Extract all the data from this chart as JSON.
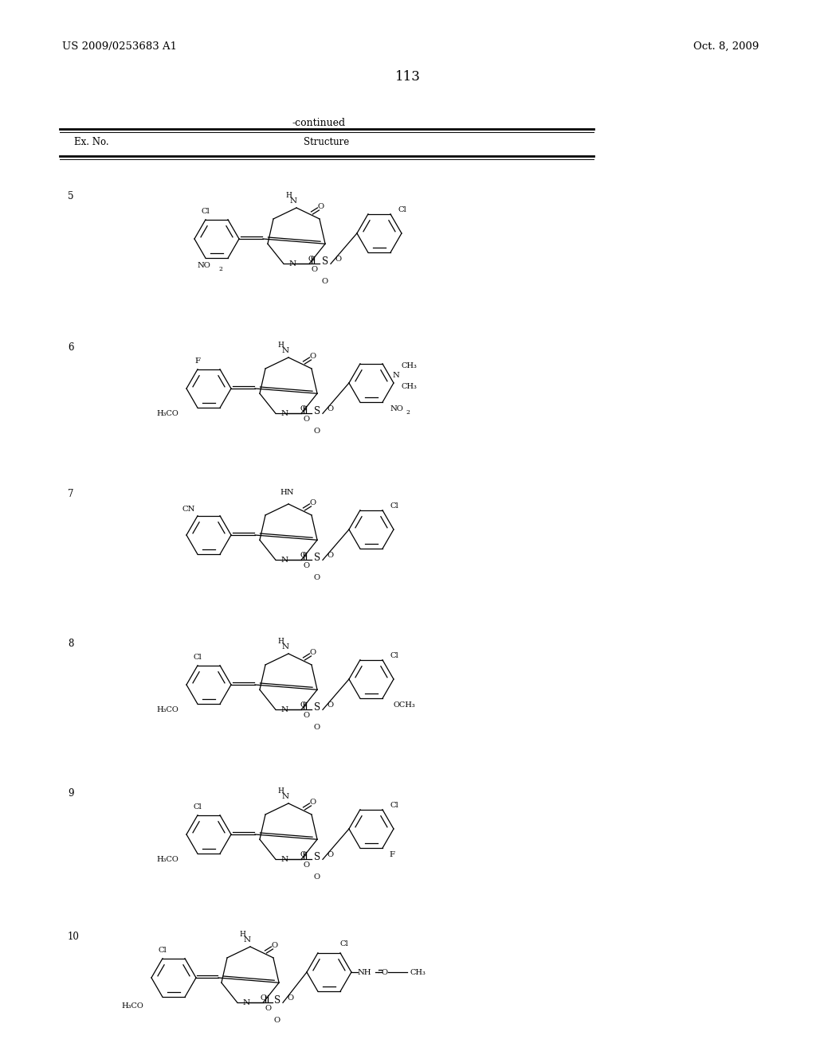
{
  "patent_number": "US 2009/0253683 A1",
  "patent_date": "Oct. 8, 2009",
  "page_number": "113",
  "continued": "-continued",
  "col1": "Ex. No.",
  "col2": "Structure",
  "bg_color": "#ffffff",
  "examples": [
    "5",
    "6",
    "7",
    "8",
    "9",
    "10"
  ]
}
